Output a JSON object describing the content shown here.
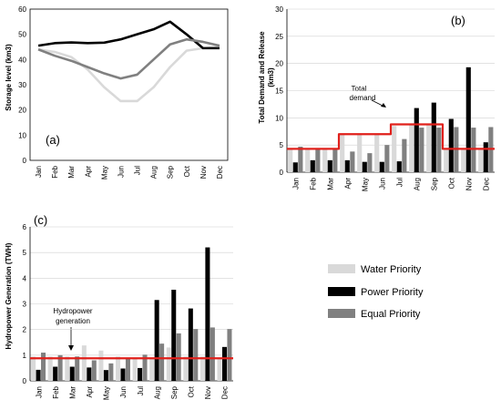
{
  "chart_data": [
    {
      "id": "a",
      "type": "line",
      "panel_label": "(a)",
      "ylabel": "Storage level (km3)",
      "ylim": [
        0,
        60
      ],
      "yticks": [
        0,
        10,
        20,
        30,
        40,
        50,
        60
      ],
      "grid": false,
      "categories": [
        "Jan",
        "Feb",
        "Mar",
        "Apr",
        "May",
        "Jun",
        "Jul",
        "Aug",
        "Sep",
        "Oct",
        "Nov",
        "Dec"
      ],
      "series": [
        {
          "name": "Water Priority",
          "color": "#d9d9d9",
          "values": [
            44,
            43,
            41,
            36,
            29,
            23.5,
            23.5,
            29,
            37,
            43.5,
            44.5,
            45
          ]
        },
        {
          "name": "Power Priority",
          "color": "#000000",
          "values": [
            45.5,
            46.5,
            46.8,
            46.5,
            46.7,
            48,
            50,
            52,
            55,
            50,
            44.5,
            44.5
          ]
        },
        {
          "name": "Equal Priority",
          "color": "#808080",
          "values": [
            44,
            41.5,
            39.5,
            37,
            34.5,
            32.5,
            34,
            40,
            46,
            48,
            47,
            45.5
          ]
        }
      ]
    },
    {
      "id": "b",
      "type": "bar",
      "panel_label": "(b)",
      "ylabel": "Total Demand and Release (km3)",
      "ylabel_line1": "Total Demand and Release",
      "ylabel_line2": "(km3)",
      "ylim": [
        0,
        30
      ],
      "yticks": [
        0,
        5,
        10,
        15,
        20,
        25,
        30
      ],
      "grid": true,
      "categories": [
        "Jan",
        "Feb",
        "Mar",
        "Apr",
        "May",
        "Jun",
        "Jul",
        "Aug",
        "Sep",
        "Oct",
        "Nov",
        "Dec"
      ],
      "series": [
        {
          "name": "Water Priority",
          "color": "#d9d9d9",
          "values": [
            4.2,
            4.3,
            4.2,
            7,
            7,
            7,
            8.5,
            8.7,
            8.8,
            4.3,
            4.3,
            4.3
          ]
        },
        {
          "name": "Power Priority",
          "color": "#000000",
          "values": [
            1.8,
            2.2,
            2.2,
            2.2,
            1.9,
            1.9,
            2,
            11.8,
            12.8,
            9.8,
            19.3,
            5.5
          ]
        },
        {
          "name": "Equal Priority",
          "color": "#808080",
          "values": [
            4.7,
            4.2,
            4.2,
            3.8,
            3.5,
            5,
            6.1,
            8.2,
            8.2,
            8.3,
            8.2,
            8.3
          ]
        }
      ],
      "line": {
        "name": "Total demand",
        "color": "#e0201b",
        "values": [
          4.3,
          4.3,
          4.3,
          7,
          7,
          7,
          8.8,
          8.8,
          8.8,
          4.3,
          4.3,
          4.3
        ]
      },
      "annotation": {
        "line1": "Total",
        "line2": "demand"
      }
    },
    {
      "id": "c",
      "type": "bar",
      "panel_label": "(c)",
      "ylabel": "Hydropower Generation (TWH)",
      "ylim": [
        0,
        6
      ],
      "yticks": [
        0,
        1,
        2,
        3,
        4,
        5,
        6
      ],
      "grid": true,
      "categories": [
        "Jan",
        "Feb",
        "Mar",
        "Apr",
        "May",
        "Jun",
        "Jul",
        "Aug",
        "Sep",
        "Oct",
        "Nov",
        "Dec"
      ],
      "series": [
        {
          "name": "Water Priority",
          "color": "#d9d9d9",
          "values": [
            0.95,
            0.95,
            0.95,
            1.38,
            1.18,
            0.95,
            0.9,
            0.9,
            1.3,
            0.95,
            0.95,
            0.9
          ]
        },
        {
          "name": "Power Priority",
          "color": "#000000",
          "values": [
            0.43,
            0.55,
            0.55,
            0.52,
            0.42,
            0.48,
            0.5,
            3.15,
            3.55,
            2.82,
            5.2,
            1.32
          ]
        },
        {
          "name": "Equal Priority",
          "color": "#808080",
          "values": [
            1.1,
            1.0,
            0.95,
            0.8,
            0.68,
            0.9,
            1.02,
            1.45,
            1.85,
            2.02,
            2.08,
            2.02
          ]
        }
      ],
      "line": {
        "name": "Hydropower generation",
        "color": "#e0201b",
        "values": [
          0.88,
          0.88,
          0.88,
          0.88,
          0.88,
          0.88,
          0.88,
          0.88,
          0.88,
          0.88,
          0.88,
          0.88
        ]
      },
      "annotation": {
        "line1": "Hydropower",
        "line2": "generation"
      }
    }
  ],
  "legend": {
    "placement": "bottom-right",
    "items": [
      {
        "label": "Water Priority",
        "color": "#d9d9d9"
      },
      {
        "label": "Power Priority",
        "color": "#000000"
      },
      {
        "label": "Equal Priority",
        "color": "#808080"
      }
    ]
  }
}
